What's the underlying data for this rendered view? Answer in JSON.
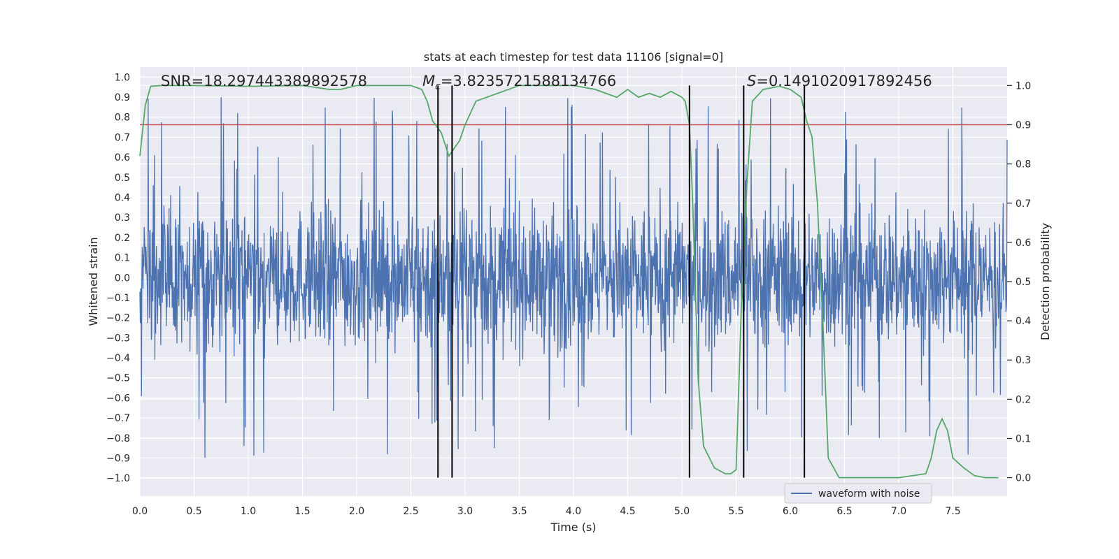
{
  "chart_data": {
    "type": "line",
    "title": "stats at each timestep for test data 11106 [signal=0]",
    "xlabel": "Time (s)",
    "ylabel_left": "Whitened strain",
    "ylabel_right": "Detection probability",
    "xlim": [
      0.0,
      8.0
    ],
    "ylim_left": [
      -1.09,
      1.05
    ],
    "ylim_right": [
      -0.047,
      1.047
    ],
    "x_ticks": [
      "0.0",
      "0.5",
      "1.0",
      "1.5",
      "2.0",
      "2.5",
      "3.0",
      "3.5",
      "4.0",
      "4.5",
      "5.0",
      "5.5",
      "6.0",
      "6.5",
      "7.0",
      "7.5"
    ],
    "y_left_ticks": [
      "1.0",
      "0.9",
      "0.8",
      "0.7",
      "0.6",
      "0.5",
      "0.4",
      "0.3",
      "0.2",
      "0.1",
      "0.0",
      "-0.1",
      "-0.2",
      "-0.3",
      "-0.4",
      "-0.5",
      "-0.6",
      "-0.7",
      "-0.8",
      "-0.9",
      "-1.0"
    ],
    "y_right_ticks": [
      "1.0",
      "0.9",
      "0.8",
      "0.7",
      "0.6",
      "0.5",
      "0.4",
      "0.3",
      "0.2",
      "0.1",
      "0.0"
    ],
    "annotations": {
      "snr": "SNR=18.297443389892578",
      "mc_symbol": "M",
      "mc_sub": "c",
      "mc_value": "=3.8235721588134766",
      "s_symbol": "S",
      "s_value": "=0.1491020917892456"
    },
    "threshold": {
      "value": 0.9,
      "color": "#c44e52"
    },
    "vertical_lines": [
      2.75,
      2.88,
      5.07,
      5.57,
      6.13
    ],
    "series": [
      {
        "name": "waveform with noise",
        "color": "#4c72b0",
        "axis": "left",
        "description": "whitened strain noise, mostly within ±0.4, peaks up to ~0.9 and down to ~-0.98"
      },
      {
        "name": "detection probability",
        "color": "#55a868",
        "axis": "right",
        "x": [
          0.0,
          0.05,
          0.1,
          0.2,
          0.5,
          1.0,
          1.5,
          1.75,
          1.85,
          2.0,
          2.5,
          2.6,
          2.65,
          2.7,
          2.78,
          2.85,
          2.95,
          3.0,
          3.1,
          3.5,
          4.0,
          4.2,
          4.3,
          4.4,
          4.5,
          4.6,
          4.7,
          4.8,
          4.9,
          5.0,
          5.03,
          5.07,
          5.1,
          5.15,
          5.2,
          5.3,
          5.4,
          5.45,
          5.5,
          5.55,
          5.6,
          5.65,
          5.75,
          5.9,
          6.0,
          6.1,
          6.15,
          6.2,
          6.25,
          6.3,
          6.35,
          6.45,
          6.6,
          7.0,
          7.25,
          7.3,
          7.35,
          7.4,
          7.45,
          7.5,
          7.6,
          7.7,
          7.8,
          7.92
        ],
        "y": [
          0.82,
          0.95,
          0.998,
          1.0,
          1.0,
          0.998,
          1.0,
          0.99,
          0.99,
          1.0,
          1.0,
          0.99,
          0.96,
          0.91,
          0.88,
          0.82,
          0.86,
          0.9,
          0.96,
          1.0,
          1.0,
          0.99,
          0.98,
          0.97,
          0.99,
          0.97,
          0.98,
          0.97,
          0.985,
          0.97,
          0.96,
          0.9,
          0.7,
          0.25,
          0.08,
          0.025,
          0.01,
          0.01,
          0.02,
          0.45,
          0.75,
          0.96,
          0.99,
          0.998,
          0.99,
          0.97,
          0.91,
          0.87,
          0.7,
          0.4,
          0.05,
          0.0,
          0.0,
          0.0,
          0.01,
          0.05,
          0.12,
          0.15,
          0.12,
          0.05,
          0.025,
          0.005,
          0.0,
          0.0
        ]
      }
    ],
    "legend": {
      "label": "waveform with noise",
      "location": "bottom-right"
    }
  }
}
